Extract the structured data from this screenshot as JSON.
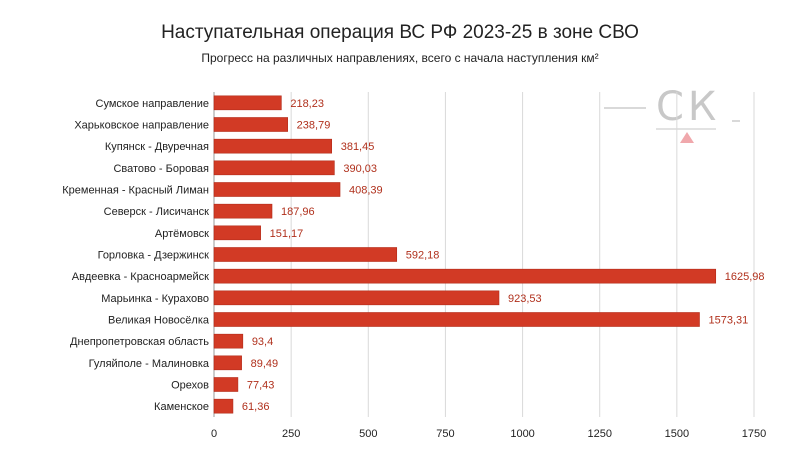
{
  "header": {
    "title": "Наступательная операция ВС РФ 2023-25 в зоне СВО",
    "subtitle": "Прогресс на различных направлениях, всего с начала наступления км²"
  },
  "logo": {
    "text": "СК"
  },
  "colors": {
    "bar": "#d23a25",
    "bar_stroke": "#b22a18",
    "value_label": "#b0301c",
    "grid": "#d9d9d9",
    "text": "#222222"
  },
  "chart_data": {
    "type": "bar",
    "orientation": "horizontal",
    "title": "Наступательная операция ВС РФ 2023-25 в зоне СВО",
    "subtitle": "Прогресс на различных направлениях, всего с начала наступления км²",
    "categories": [
      "Сумское направление",
      "Харьковское направление",
      "Купянск - Двуречная",
      "Сватово - Боровая",
      "Кременная - Красный Лиман",
      "Северск - Лисичанск",
      "Артёмовск",
      "Горловка - Дзержинск",
      "Авдеевка - Красноармейск",
      "Марьинка - Курахово",
      "Великая Новосёлка",
      "Днепропетровская область",
      "Гуляйполе - Малиновка",
      "Орехов",
      "Каменское"
    ],
    "values": [
      218.23,
      238.79,
      381.45,
      390.03,
      408.39,
      187.96,
      151.17,
      592.18,
      1625.98,
      923.53,
      1573.31,
      93.4,
      89.49,
      77.43,
      61.36
    ],
    "value_labels": [
      "218,23",
      "238,79",
      "381,45",
      "390,03",
      "408,39",
      "187,96",
      "151,17",
      "592,18",
      "1625,98",
      "923,53",
      "1573,31",
      "93,4",
      "89,49",
      "77,43",
      "61,36"
    ],
    "xlim": [
      0,
      1750
    ],
    "xticks": [
      0,
      250,
      500,
      750,
      1000,
      1250,
      1500,
      1750
    ],
    "xtick_labels": [
      "0",
      "250",
      "500",
      "750",
      "1000",
      "1250",
      "1500",
      "1750"
    ],
    "grid": "vertical",
    "legend": "none"
  }
}
